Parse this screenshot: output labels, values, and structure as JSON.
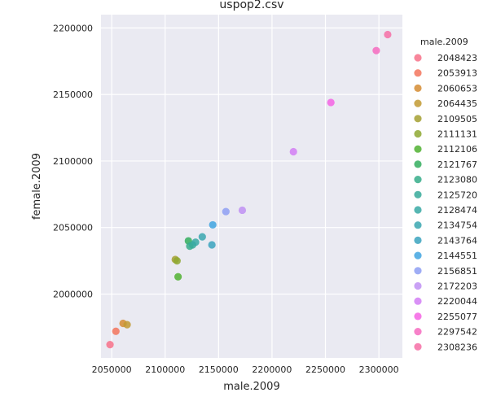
{
  "chart_data": {
    "type": "scatter",
    "title": "uspop2.csv",
    "xlabel": "male.2009",
    "ylabel": "female.2009",
    "xlim": [
      2040000,
      2322000
    ],
    "ylim": [
      1952000,
      2210000
    ],
    "xticks": [
      2050000,
      2100000,
      2150000,
      2200000,
      2250000,
      2300000
    ],
    "yticks": [
      2000000,
      2050000,
      2100000,
      2150000,
      2200000
    ],
    "grid": true,
    "legend": {
      "title": "male.2009",
      "placement": "right",
      "entries": [
        "2048423",
        "2053913",
        "2060653",
        "2064435",
        "2109505",
        "2111131",
        "2112106",
        "2121767",
        "2123080",
        "2125720",
        "2128474",
        "2134754",
        "2143764",
        "2144551",
        "2156851",
        "2172203",
        "2220044",
        "2255077",
        "2297542",
        "2308236"
      ]
    },
    "colors": [
      "#f77189",
      "#f3765d",
      "#d58c32",
      "#c29a32",
      "#a4a031",
      "#8ea831",
      "#50b131",
      "#34ae5e",
      "#36ad8a",
      "#37aa9a",
      "#38a9a5",
      "#39a7b0",
      "#3ba3be",
      "#41a4e0",
      "#8e9ff3",
      "#bf91f3",
      "#d27ef4",
      "#f464e4",
      "#f66bc0",
      "#f66ea6"
    ],
    "points": [
      {
        "x": 2048423,
        "y": 1962000
      },
      {
        "x": 2053913,
        "y": 1972000
      },
      {
        "x": 2060653,
        "y": 1978000
      },
      {
        "x": 2064435,
        "y": 1977000
      },
      {
        "x": 2109505,
        "y": 2026000
      },
      {
        "x": 2111131,
        "y": 2025000
      },
      {
        "x": 2112106,
        "y": 2013000
      },
      {
        "x": 2121767,
        "y": 2040000
      },
      {
        "x": 2123080,
        "y": 2036000
      },
      {
        "x": 2125720,
        "y": 2037000
      },
      {
        "x": 2128474,
        "y": 2039000
      },
      {
        "x": 2134754,
        "y": 2043000
      },
      {
        "x": 2143764,
        "y": 2037000
      },
      {
        "x": 2144551,
        "y": 2052000
      },
      {
        "x": 2156851,
        "y": 2062000
      },
      {
        "x": 2172203,
        "y": 2063000
      },
      {
        "x": 2220044,
        "y": 2107000
      },
      {
        "x": 2255077,
        "y": 2144000
      },
      {
        "x": 2297542,
        "y": 2183000
      },
      {
        "x": 2308236,
        "y": 2195000
      }
    ]
  }
}
